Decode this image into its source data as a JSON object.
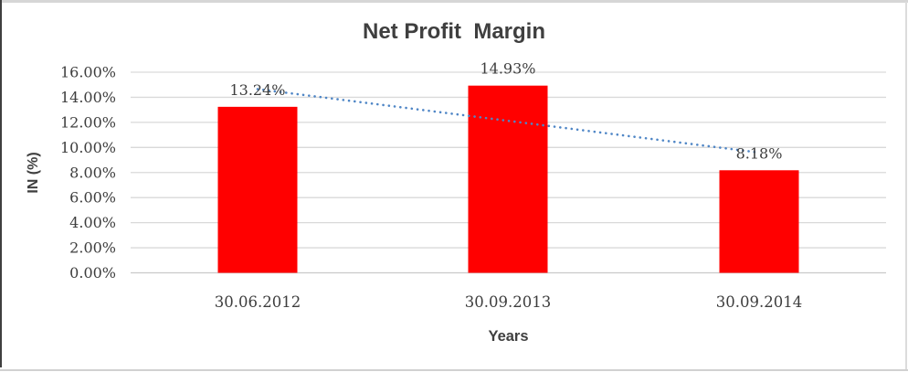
{
  "chart_data": {
    "type": "bar",
    "title": "Net Profit  Margin",
    "xlabel": "Years",
    "ylabel": "IN (%)",
    "categories": [
      "30.06.2012",
      "30.09.2013",
      "30.09.2014"
    ],
    "values": [
      13.24,
      14.93,
      8.18
    ],
    "data_labels": [
      "13.24%",
      "14.93%",
      "8.18%"
    ],
    "ylim": [
      0,
      16
    ],
    "ytick_values": [
      0,
      2,
      4,
      6,
      8,
      10,
      12,
      14,
      16
    ],
    "ytick_labels": [
      "0.00%",
      "2.00%",
      "4.00%",
      "6.00%",
      "8.00%",
      "10.00%",
      "12.00%",
      "14.00%",
      "16.00%"
    ],
    "grid": true,
    "legend": "none",
    "bar_color": "#ff0000",
    "colors": {
      "gridline": "#d9d9d9",
      "axis_line": "#c9c9c9",
      "text": "#3d3d3d",
      "title_text": "#3f3f3f"
    },
    "trendline": {
      "type": "linear",
      "style": "dotted",
      "color": "#4f86c6",
      "start_value": 14.65,
      "end_value": 9.59
    }
  }
}
